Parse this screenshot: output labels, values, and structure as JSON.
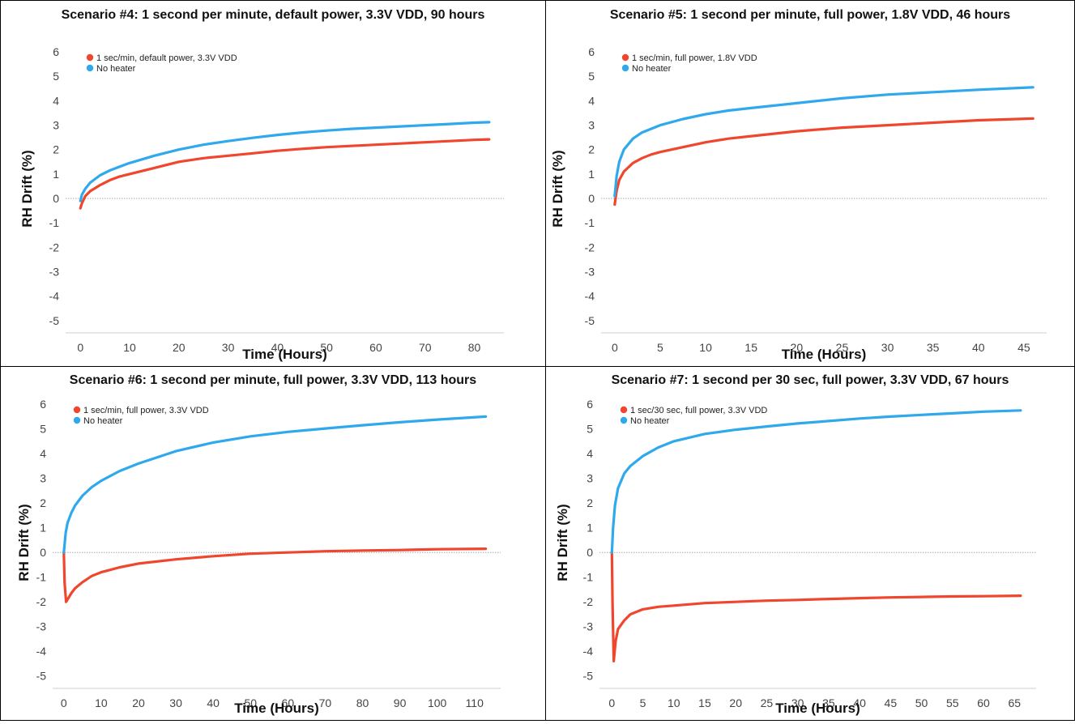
{
  "chart_data": [
    {
      "type": "line",
      "title": "Scenario #4: 1 second per minute, default power, 3.3V VDD, 90 hours",
      "xlabel": "Time (Hours)",
      "ylabel": "RH Drift (%)",
      "xlim": [
        -3,
        86
      ],
      "ylim": [
        -5.5,
        6.3
      ],
      "xticks": [
        0,
        10,
        20,
        30,
        40,
        50,
        60,
        70,
        80
      ],
      "yticks": [
        -5,
        -4,
        -3,
        -2,
        -1,
        0,
        1,
        2,
        3,
        4,
        5,
        6
      ],
      "zero_line": true,
      "legend_position": "top-left",
      "series": [
        {
          "name": "1 sec/min, default power, 3.3V VDD",
          "color": "#f0462d",
          "x": [
            0,
            0.3,
            1,
            2,
            4,
            6,
            8,
            10,
            15,
            20,
            25,
            30,
            35,
            40,
            45,
            50,
            55,
            60,
            65,
            70,
            75,
            80,
            83
          ],
          "y": [
            -0.4,
            -0.2,
            0.1,
            0.3,
            0.55,
            0.75,
            0.9,
            1.0,
            1.25,
            1.5,
            1.65,
            1.75,
            1.85,
            1.95,
            2.03,
            2.1,
            2.15,
            2.2,
            2.25,
            2.3,
            2.35,
            2.4,
            2.42
          ]
        },
        {
          "name": "No heater",
          "color": "#2fa9ec",
          "x": [
            0,
            0.3,
            1,
            2,
            4,
            6,
            8,
            10,
            15,
            20,
            25,
            30,
            35,
            40,
            45,
            50,
            55,
            60,
            65,
            70,
            75,
            80,
            83
          ],
          "y": [
            -0.1,
            0.15,
            0.4,
            0.65,
            0.95,
            1.15,
            1.3,
            1.45,
            1.75,
            2.0,
            2.2,
            2.35,
            2.48,
            2.6,
            2.7,
            2.78,
            2.85,
            2.9,
            2.95,
            3.0,
            3.05,
            3.1,
            3.12
          ]
        }
      ]
    },
    {
      "type": "line",
      "title": "Scenario #5: 1 second per minute, full power, 1.8V VDD, 46 hours",
      "xlabel": "Time (Hours)",
      "ylabel": "RH Drift (%)",
      "xlim": [
        -1.5,
        47.5
      ],
      "ylim": [
        -5.5,
        6.3
      ],
      "xticks": [
        0,
        5,
        10,
        15,
        20,
        25,
        30,
        35,
        40,
        45
      ],
      "yticks": [
        -5,
        -4,
        -3,
        -2,
        -1,
        0,
        1,
        2,
        3,
        4,
        5,
        6
      ],
      "zero_line": true,
      "legend_position": "top-left",
      "series": [
        {
          "name": "1 sec/min, full power, 1.8V VDD",
          "color": "#f0462d",
          "x": [
            0,
            0.2,
            0.5,
            1,
            2,
            3,
            4,
            5,
            7.5,
            10,
            12.5,
            15,
            20,
            25,
            30,
            35,
            40,
            46
          ],
          "y": [
            -0.25,
            0.3,
            0.75,
            1.1,
            1.45,
            1.65,
            1.8,
            1.9,
            2.1,
            2.3,
            2.45,
            2.55,
            2.75,
            2.9,
            3.0,
            3.1,
            3.2,
            3.27
          ]
        },
        {
          "name": "No heater",
          "color": "#2fa9ec",
          "x": [
            0,
            0.2,
            0.5,
            1,
            2,
            3,
            4,
            5,
            7.5,
            10,
            12.5,
            15,
            20,
            25,
            30,
            35,
            40,
            46
          ],
          "y": [
            0.1,
            0.9,
            1.5,
            2.0,
            2.45,
            2.7,
            2.85,
            3.0,
            3.25,
            3.45,
            3.6,
            3.7,
            3.9,
            4.1,
            4.25,
            4.35,
            4.45,
            4.55
          ]
        }
      ]
    },
    {
      "type": "line",
      "title": "Scenario #6: 1 second per minute, full power, 3.3V VDD, 113 hours",
      "xlabel": "Time (Hours)",
      "ylabel": "RH Drift (%)",
      "xlim": [
        -3,
        117
      ],
      "ylim": [
        -5.5,
        6.3
      ],
      "xticks": [
        0,
        10,
        20,
        30,
        40,
        50,
        60,
        70,
        80,
        90,
        100,
        110
      ],
      "yticks": [
        -5,
        -4,
        -3,
        -2,
        -1,
        0,
        1,
        2,
        3,
        4,
        5,
        6
      ],
      "zero_line": true,
      "legend_position": "top-left",
      "series": [
        {
          "name": "1 sec/min, full power, 3.3V VDD",
          "color": "#f0462d",
          "x": [
            0,
            0.2,
            0.6,
            1,
            2,
            3,
            5,
            7.5,
            10,
            15,
            20,
            30,
            40,
            50,
            60,
            70,
            80,
            90,
            100,
            113
          ],
          "y": [
            0,
            -1.2,
            -2.0,
            -1.9,
            -1.65,
            -1.45,
            -1.2,
            -0.95,
            -0.8,
            -0.6,
            -0.45,
            -0.28,
            -0.15,
            -0.05,
            0.0,
            0.05,
            0.08,
            0.1,
            0.13,
            0.15
          ]
        },
        {
          "name": "No heater",
          "color": "#2fa9ec",
          "x": [
            0,
            0.5,
            1,
            2,
            3,
            5,
            7.5,
            10,
            15,
            20,
            30,
            40,
            50,
            60,
            70,
            80,
            90,
            100,
            113
          ],
          "y": [
            0,
            0.8,
            1.2,
            1.6,
            1.9,
            2.3,
            2.65,
            2.9,
            3.3,
            3.6,
            4.1,
            4.45,
            4.7,
            4.88,
            5.02,
            5.15,
            5.27,
            5.38,
            5.5
          ]
        }
      ]
    },
    {
      "type": "line",
      "title": "Scenario #7: 1 second per 30 sec, full power, 3.3V VDD, 67 hours",
      "xlabel": "Time (Hours)",
      "ylabel": "RH Drift (%)",
      "xlim": [
        -2,
        68.5
      ],
      "ylim": [
        -5.5,
        6.3
      ],
      "xticks": [
        0,
        5,
        10,
        15,
        20,
        25,
        30,
        35,
        40,
        45,
        50,
        55,
        60,
        65
      ],
      "yticks": [
        -5,
        -4,
        -3,
        -2,
        -1,
        0,
        1,
        2,
        3,
        4,
        5,
        6
      ],
      "zero_line": true,
      "legend_position": "top-left",
      "series": [
        {
          "name": "1 sec/30 sec, full power, 3.3V VDD",
          "color": "#f0462d",
          "x": [
            0,
            0.1,
            0.3,
            0.6,
            1,
            2,
            3,
            5,
            7.5,
            10,
            15,
            20,
            25,
            30,
            35,
            40,
            45,
            50,
            55,
            60,
            66
          ],
          "y": [
            0,
            -2.0,
            -4.4,
            -3.6,
            -3.1,
            -2.75,
            -2.5,
            -2.3,
            -2.2,
            -2.15,
            -2.05,
            -2.0,
            -1.95,
            -1.92,
            -1.88,
            -1.85,
            -1.82,
            -1.8,
            -1.78,
            -1.77,
            -1.75
          ]
        },
        {
          "name": "No heater",
          "color": "#2fa9ec",
          "x": [
            0,
            0.2,
            0.5,
            1,
            2,
            3,
            5,
            7.5,
            10,
            15,
            20,
            25,
            30,
            35,
            40,
            45,
            50,
            55,
            60,
            66
          ],
          "y": [
            0,
            1.0,
            1.9,
            2.6,
            3.2,
            3.5,
            3.9,
            4.25,
            4.5,
            4.8,
            4.97,
            5.1,
            5.22,
            5.32,
            5.42,
            5.5,
            5.57,
            5.63,
            5.7,
            5.75
          ]
        }
      ]
    }
  ]
}
